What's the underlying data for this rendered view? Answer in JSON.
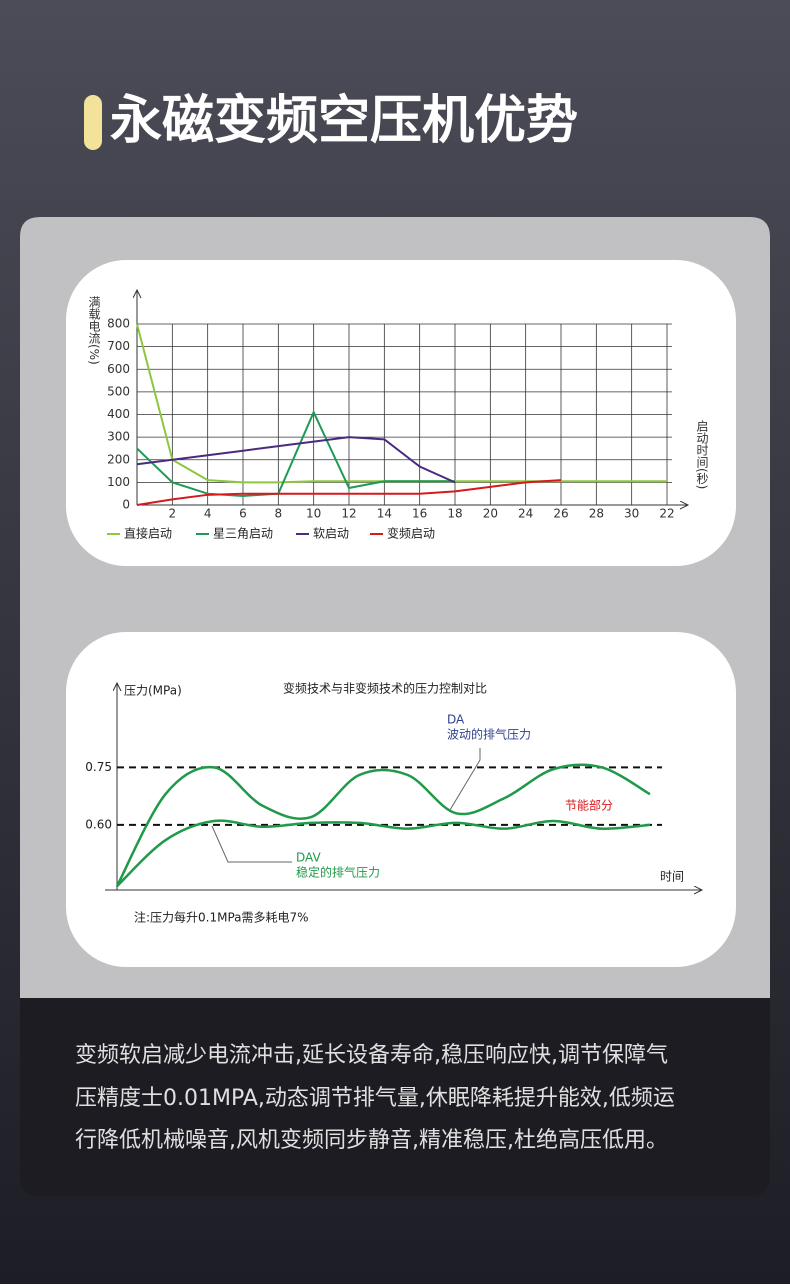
{
  "header": {
    "title": "永磁变频空压机优势"
  },
  "chart_data": [
    {
      "type": "line",
      "y_label": "满载电流(%)",
      "x_label": "启动时间(秒)",
      "categories": [
        "0",
        "2",
        "4",
        "6",
        "8",
        "10",
        "12",
        "14",
        "16",
        "18",
        "20",
        "24",
        "26",
        "28",
        "30",
        "22"
      ],
      "ylim": [
        0,
        800
      ],
      "yticks": [
        0,
        100,
        200,
        300,
        400,
        500,
        600,
        700,
        800
      ],
      "grid": true,
      "series": [
        {
          "name": "直接启动",
          "color": "#8dc63f",
          "values": [
            800,
            200,
            110,
            100,
            100,
            105,
            105,
            105,
            105,
            105,
            105,
            105,
            105,
            105,
            105,
            105
          ]
        },
        {
          "name": "星三角启动",
          "color": "#1f9a55",
          "values": [
            250,
            100,
            50,
            40,
            50,
            410,
            75,
            105,
            105,
            105,
            null,
            null,
            null,
            null,
            null,
            null
          ]
        },
        {
          "name": "软启动",
          "color": "#4b2a7f",
          "values": [
            180,
            200,
            220,
            240,
            260,
            280,
            300,
            290,
            170,
            100,
            null,
            null,
            null,
            null,
            null,
            null
          ]
        },
        {
          "name": "变频启动",
          "color": "#d7191c",
          "values": [
            0,
            25,
            45,
            50,
            50,
            50,
            50,
            50,
            50,
            60,
            80,
            100,
            110,
            null,
            null,
            null
          ]
        }
      ]
    },
    {
      "type": "curve",
      "title": "变频技术与非变频技术的压力控制对比",
      "y_label": "压力(MPa)",
      "x_label": "时间",
      "ylim": [
        0.43,
        0.97
      ],
      "yticks": [
        {
          "value": 0.6,
          "label": "0.60"
        },
        0.75
      ],
      "series": [
        {
          "name": "DA",
          "color": "#1f9a48",
          "values": [
            0.44,
            0.68,
            0.75,
            0.65,
            0.62,
            0.73,
            0.73,
            0.63,
            0.67,
            0.745,
            0.75,
            0.68
          ]
        },
        {
          "name": "DAV",
          "color": "#1f9a48",
          "values": [
            0.44,
            0.56,
            0.61,
            0.595,
            0.605,
            0.605,
            0.59,
            0.605,
            0.59,
            0.61,
            0.59,
            0.6
          ]
        }
      ],
      "annotations": {
        "da_desc": "波动的排气压力",
        "dav_desc": "稳定的排气压力",
        "saving": "节能部分",
        "note": "注:压力每升0.1MPa需多耗电7%"
      }
    }
  ],
  "description": [
    "变频软启减少电流冲击,延长设备寿命,稳压响应快,调节保障气",
    "压精度士0.01MPA,动态调节排气量,休眠降耗提升能效,低频运",
    "行降低机械噪音,风机变频同步静音,精准稳压,杜绝高压低用。"
  ]
}
